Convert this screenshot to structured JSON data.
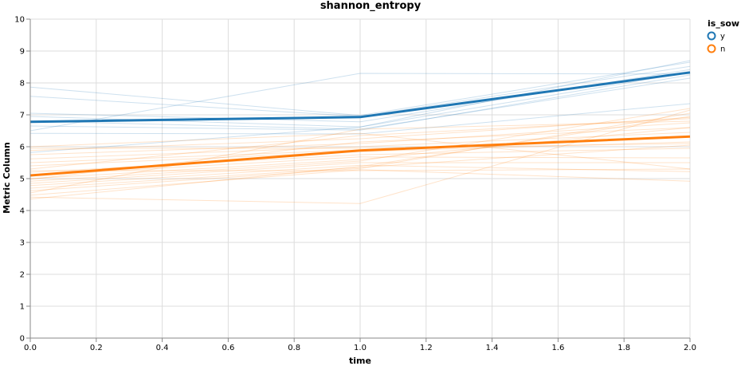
{
  "chart_data": {
    "type": "line",
    "title": "shannon_entropy",
    "xlabel": "time",
    "ylabel": "Metric Column",
    "xlim": [
      0,
      2
    ],
    "ylim": [
      0,
      10
    ],
    "x_ticks": [
      "0.0",
      "0.2",
      "0.4",
      "0.6",
      "0.8",
      "1.0",
      "1.2",
      "1.4",
      "1.6",
      "1.8",
      "2.0"
    ],
    "y_ticks": [
      "0",
      "1",
      "2",
      "3",
      "4",
      "5",
      "6",
      "7",
      "8",
      "9",
      "10"
    ],
    "grid": true,
    "legend": {
      "title": "is_sow",
      "position": "top-right",
      "entries": [
        {
          "label": "y",
          "color": "#1f77b4"
        },
        {
          "label": "n",
          "color": "#ff7f0e"
        }
      ]
    },
    "x": [
      0,
      1,
      2
    ],
    "mean_series": [
      {
        "name": "y",
        "color": "#1f77b4",
        "values": [
          6.78,
          6.93,
          8.33
        ]
      },
      {
        "name": "n",
        "color": "#ff7f0e",
        "values": [
          5.1,
          5.88,
          6.32
        ]
      }
    ],
    "individual_series": [
      {
        "group": "y",
        "color": "#1f77b4",
        "values": [
          7.87,
          6.98,
          8.65
        ]
      },
      {
        "group": "y",
        "color": "#1f77b4",
        "values": [
          7.58,
          6.95,
          8.52
        ]
      },
      {
        "group": "y",
        "color": "#1f77b4",
        "values": [
          7.05,
          6.78,
          8.42
        ]
      },
      {
        "group": "y",
        "color": "#1f77b4",
        "values": [
          6.95,
          6.62,
          8.33
        ]
      },
      {
        "group": "y",
        "color": "#1f77b4",
        "values": [
          6.8,
          6.55,
          8.15
        ]
      },
      {
        "group": "y",
        "color": "#1f77b4",
        "values": [
          6.65,
          6.52,
          8.25
        ]
      },
      {
        "group": "y",
        "color": "#1f77b4",
        "values": [
          6.5,
          8.3,
          8.28
        ]
      },
      {
        "group": "y",
        "color": "#1f77b4",
        "values": [
          6.42,
          6.4,
          7.35
        ]
      },
      {
        "group": "y",
        "color": "#1f77b4",
        "values": [
          5.82,
          6.62,
          8.7
        ]
      },
      {
        "group": "n",
        "color": "#ff7f0e",
        "values": [
          6.0,
          6.42,
          5.3
        ]
      },
      {
        "group": "n",
        "color": "#ff7f0e",
        "values": [
          5.88,
          6.25,
          6.92
        ]
      },
      {
        "group": "n",
        "color": "#ff7f0e",
        "values": [
          5.75,
          6.1,
          6.75
        ]
      },
      {
        "group": "n",
        "color": "#ff7f0e",
        "values": [
          5.62,
          6.0,
          6.45
        ]
      },
      {
        "group": "n",
        "color": "#ff7f0e",
        "values": [
          5.5,
          5.9,
          6.3
        ]
      },
      {
        "group": "n",
        "color": "#ff7f0e",
        "values": [
          5.4,
          5.85,
          6.15
        ]
      },
      {
        "group": "n",
        "color": "#ff7f0e",
        "values": [
          5.3,
          6.35,
          6.88
        ]
      },
      {
        "group": "n",
        "color": "#ff7f0e",
        "values": [
          5.2,
          5.75,
          5.95
        ]
      },
      {
        "group": "n",
        "color": "#ff7f0e",
        "values": [
          5.1,
          5.68,
          5.65
        ]
      },
      {
        "group": "n",
        "color": "#ff7f0e",
        "values": [
          5.0,
          5.6,
          6.6
        ]
      },
      {
        "group": "n",
        "color": "#ff7f0e",
        "values": [
          4.92,
          5.55,
          7.2
        ]
      },
      {
        "group": "n",
        "color": "#ff7f0e",
        "values": [
          4.85,
          5.5,
          5.5
        ]
      },
      {
        "group": "n",
        "color": "#ff7f0e",
        "values": [
          4.78,
          5.42,
          5.22
        ]
      },
      {
        "group": "n",
        "color": "#ff7f0e",
        "values": [
          4.7,
          5.35,
          6.05
        ]
      },
      {
        "group": "n",
        "color": "#ff7f0e",
        "values": [
          4.62,
          5.32,
          7.05
        ]
      },
      {
        "group": "n",
        "color": "#ff7f0e",
        "values": [
          4.55,
          6.55,
          6.8
        ]
      },
      {
        "group": "n",
        "color": "#ff7f0e",
        "values": [
          4.48,
          5.28,
          4.92
        ]
      },
      {
        "group": "n",
        "color": "#ff7f0e",
        "values": [
          4.42,
          4.22,
          7.15
        ]
      },
      {
        "group": "n",
        "color": "#ff7f0e",
        "values": [
          4.36,
          5.38,
          6.95
        ]
      },
      {
        "group": "n",
        "color": "#ff7f0e",
        "values": [
          5.95,
          5.95,
          6.1
        ]
      },
      {
        "group": "n",
        "color": "#ff7f0e",
        "values": [
          5.25,
          5.25,
          5.3
        ]
      },
      {
        "group": "n",
        "color": "#ff7f0e",
        "values": [
          4.98,
          6.15,
          6.6
        ]
      }
    ]
  }
}
